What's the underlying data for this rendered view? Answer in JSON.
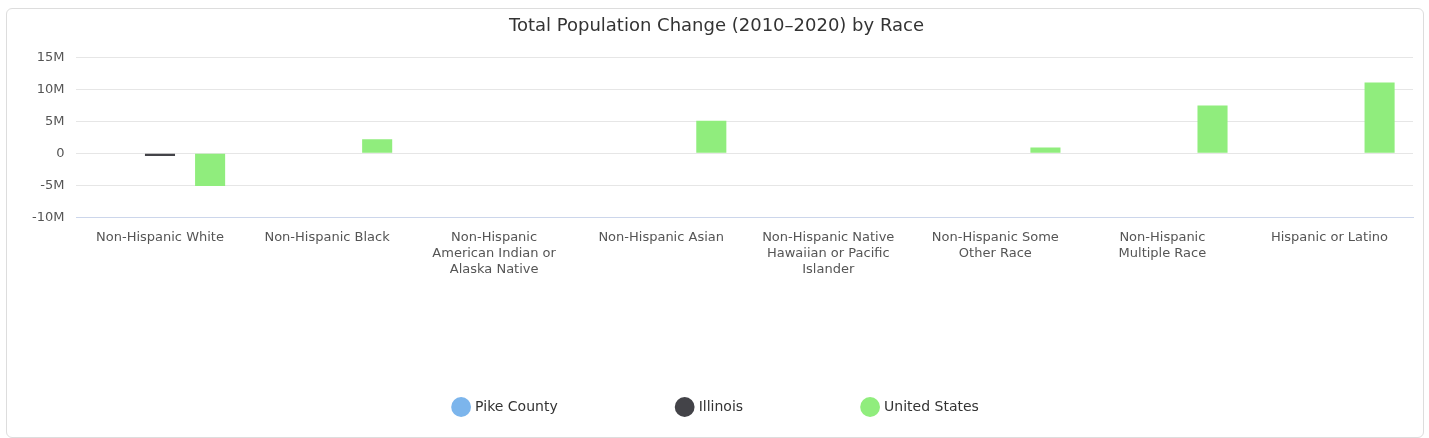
{
  "chart_data": {
    "type": "bar",
    "title": "Total Population Change (2010–2020) by Race",
    "categories": [
      "Non-Hispanic White",
      "Non-Hispanic Black",
      "Non-Hispanic American Indian or Alaska Native",
      "Non-Hispanic Asian",
      "Non-Hispanic Native Hawaiian or Pacific Islander",
      "Non-Hispanic Some Other Race",
      "Non-Hispanic Multiple Race",
      "Hispanic or Latino"
    ],
    "series": [
      {
        "name": "Pike County",
        "color": "#7cb5ec",
        "values": [
          0,
          0,
          0,
          0,
          0,
          0,
          0,
          0
        ]
      },
      {
        "name": "Illinois",
        "color": "#434348",
        "values": [
          -0.4,
          0,
          0,
          0,
          0,
          0,
          0,
          0
        ]
      },
      {
        "name": "United States",
        "color": "#90ed7d",
        "values": [
          -5.1,
          2.2,
          0,
          5.1,
          0,
          0.9,
          7.5,
          11.1
        ]
      }
    ],
    "ylim": [
      -10,
      15
    ],
    "yticks": [
      {
        "value": -10,
        "label": "-10M"
      },
      {
        "value": -5,
        "label": "-5M"
      },
      {
        "value": 0,
        "label": "0"
      },
      {
        "value": 5,
        "label": "5M"
      },
      {
        "value": 10,
        "label": "10M"
      },
      {
        "value": 15,
        "label": "15M"
      }
    ],
    "grid": "y",
    "legend": "bottom"
  }
}
